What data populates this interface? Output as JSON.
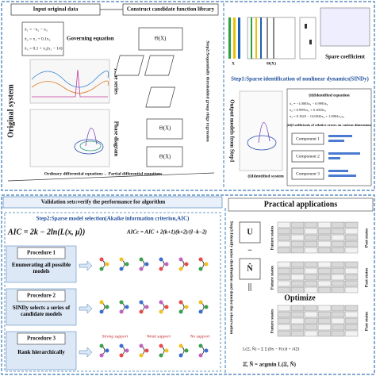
{
  "top": {
    "input": "Input original data",
    "library": "Construct candidate function library",
    "governing": "Governing equation",
    "equations": [
      "ẋ₁ = −x₂ − x₃",
      "ẋ₂ = x₁ + 0.1x₂",
      "ẋ₃ = 0.1 + x₃(x₁ − 14)"
    ],
    "original": "Original system",
    "time_series": "Time series",
    "phase": "Phase diagram",
    "ode_pde": "Ordinary differential equations→ Partial differential equations",
    "theta": "Θ(X)",
    "x_label": "X",
    "regression": "Step2:Sequentially thresholded group ridge regression",
    "sparse_coef": "Spare coefficient",
    "step1": "Step1:Sparse identification of nonlinear dynamics(SINDy)",
    "output": "Output models from Step1",
    "identified_system": "(i)Identified system",
    "identified_equation": "(ii)Identified equation",
    "id_eqs": [
      "ẋ₁ = −1.0003x₂ − 0.9995x₃",
      "ẋ₂ = 0.9991x₁ + 0.1003x₂",
      "ẋ₃ = 0.1023 − 14.0042x₃ + 1.0002x₁x₃"
    ],
    "coef_errors": "(iii)Coefficients of relative errors on various dimensions",
    "components": [
      "Component 1",
      "Component 2",
      "Component 3"
    ]
  },
  "bottom": {
    "validation": "Validation sets:verify the performance for algorithm",
    "practical": "Practical applications",
    "step2": "Step2:Sparse model selection(Akaike information criterion,AIC)",
    "aic": "AIC = 2k − 2ln(L(x, μ̂))",
    "aicc": "AICc = AIC + 2(k+1)(k+2)/(l−k−2)",
    "procedures": [
      {
        "name": "Procedure 1",
        "desc": "Enumerating all possible models"
      },
      {
        "name": "Procedure 2",
        "desc": "SINDy selects a series of candidate models"
      },
      {
        "name": "Procedure 3",
        "desc": "Rank hierarchically"
      }
    ],
    "support": [
      "Strong support",
      "Weak support",
      "No support"
    ],
    "step3": "Step3:Identify noise distribution and denoise the observation",
    "u": "U",
    "n": "N̂",
    "optimize": "Optimize",
    "future": "Future states",
    "past": "Past states",
    "loss": "L(Ξ, N̂) = Σ Σ β‖x − F(x)‖ + λ‖Ξ‖",
    "argmin": "Ξ̂, N̂ = argmin L(Ξ, N̂)"
  }
}
